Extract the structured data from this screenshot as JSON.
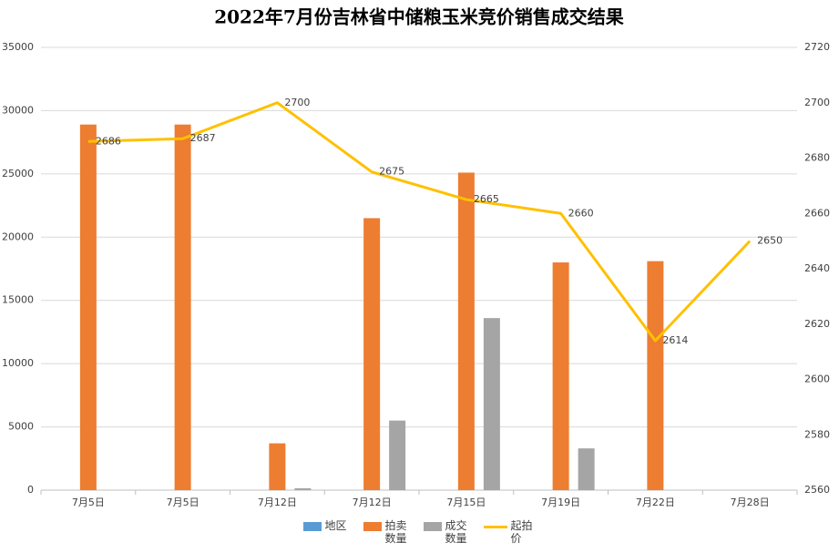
{
  "chart_data": {
    "type": "bar",
    "title": "2022年7月份吉林省中储粮玉米竞价销售成交结果",
    "categories": [
      "7月5日",
      "7月5日",
      "7月12日",
      "7月12日",
      "7月15日",
      "7月19日",
      "7月22日",
      "7月28日"
    ],
    "series": [
      {
        "name": "地区",
        "color": "#5b9bd5",
        "values": [
          null,
          null,
          null,
          null,
          null,
          null,
          null,
          null
        ]
      },
      {
        "name": "拍卖数量",
        "color": "#ed7d31",
        "values": [
          28900,
          28900,
          3700,
          21500,
          25100,
          18000,
          18100,
          null
        ]
      },
      {
        "name": "成交数量",
        "color": "#a5a5a5",
        "values": [
          null,
          null,
          150,
          5500,
          13600,
          3300,
          null,
          null
        ]
      },
      {
        "name": "起拍价",
        "color": "#ffc000",
        "type": "line",
        "axis": "y2",
        "values": [
          2686,
          2687,
          2700,
          2675,
          2665,
          2660,
          2614,
          2650
        ]
      }
    ],
    "ylim": [
      0,
      35000
    ],
    "yticks": [
      0,
      5000,
      10000,
      15000,
      20000,
      25000,
      30000,
      35000
    ],
    "y2lim": [
      2560,
      2720
    ],
    "y2ticks": [
      2560,
      2580,
      2600,
      2620,
      2640,
      2660,
      2680,
      2700,
      2720
    ],
    "grid": true
  }
}
